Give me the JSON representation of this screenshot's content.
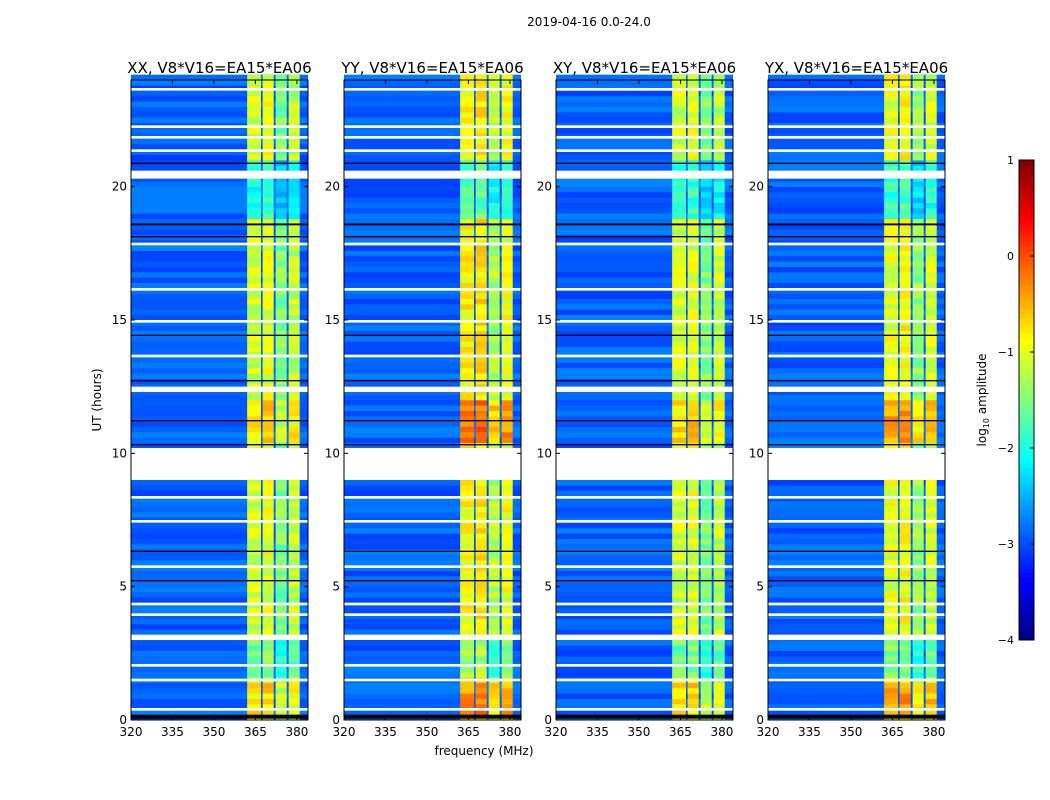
{
  "chart_data": {
    "type": "heatmap",
    "suptitle": "2019-04-16 0.0-24.0",
    "xlabel": "frequency (MHz)",
    "ylabel": "UT (hours)",
    "xlim": [
      320,
      384
    ],
    "ylim": [
      0,
      24
    ],
    "xticks": [
      "320",
      "335",
      "350",
      "365",
      "380"
    ],
    "xtick_values": [
      320,
      335,
      350,
      365,
      380
    ],
    "yticks": [
      "0",
      "5",
      "10",
      "15",
      "20"
    ],
    "ytick_values": [
      0,
      5,
      10,
      15,
      20
    ],
    "panels": [
      {
        "title": "XX, V8*V16=EA15*EA06",
        "band_offset": 0
      },
      {
        "title": "YY, V8*V16=EA15*EA06",
        "band_offset": 0.25
      },
      {
        "title": "XY, V8*V16=EA15*EA06",
        "band_offset": 0
      },
      {
        "title": "YX, V8*V16=EA15*EA06",
        "band_offset": 0.1
      }
    ],
    "background_log_amplitude": -2.9,
    "band_segments": [
      {
        "f0": 362,
        "f1": 367,
        "value": -1.1
      },
      {
        "f0": 367.6,
        "f1": 371.6,
        "value": -1.0
      },
      {
        "f0": 372.3,
        "f1": 376.3,
        "value": -1.5
      },
      {
        "f0": 377,
        "f1": 381,
        "value": -1.2
      }
    ],
    "band_dim_intervals": [
      [
        18.7,
        20.8,
        -0.9
      ],
      [
        1.5,
        3.0,
        -0.5
      ]
    ],
    "band_bright_intervals": [
      [
        10.3,
        11.8,
        0.6
      ],
      [
        0.2,
        1.4,
        0.5
      ]
    ],
    "flagged_white_hours": [
      [
        9.0,
        10.2
      ],
      [
        20.3,
        20.6
      ],
      [
        3.0,
        3.2
      ],
      [
        0.35,
        0.45
      ],
      [
        1.45,
        1.55
      ],
      [
        23.6,
        23.7
      ],
      [
        22.2,
        22.3
      ],
      [
        21.8,
        21.9
      ],
      [
        21.3,
        21.4
      ],
      [
        17.8,
        17.9
      ],
      [
        16.1,
        16.2
      ],
      [
        14.9,
        15.0
      ],
      [
        13.6,
        13.7
      ],
      [
        12.3,
        12.5
      ],
      [
        8.3,
        8.4
      ],
      [
        7.4,
        7.5
      ],
      [
        5.7,
        5.8
      ],
      [
        4.3,
        4.4
      ],
      [
        3.9,
        4.0
      ],
      [
        2.0,
        2.1
      ]
    ],
    "flagged_black_hours": [
      [
        20.85,
        20.9
      ],
      [
        18.55,
        18.62
      ],
      [
        18.1,
        18.15
      ],
      [
        12.7,
        12.75
      ],
      [
        10.3,
        10.35
      ],
      [
        11.2,
        11.25
      ],
      [
        6.3,
        6.35
      ],
      [
        5.2,
        5.25
      ],
      [
        0.05,
        0.2
      ],
      [
        14.4,
        14.45
      ]
    ],
    "colorbar": {
      "label": "log10 amplitude",
      "range": [
        -4,
        1
      ],
      "ticks": [
        "1",
        "0",
        "−1",
        "−2",
        "−3",
        "−4"
      ],
      "tick_values": [
        1,
        0,
        -1,
        -2,
        -3,
        -4
      ]
    }
  }
}
